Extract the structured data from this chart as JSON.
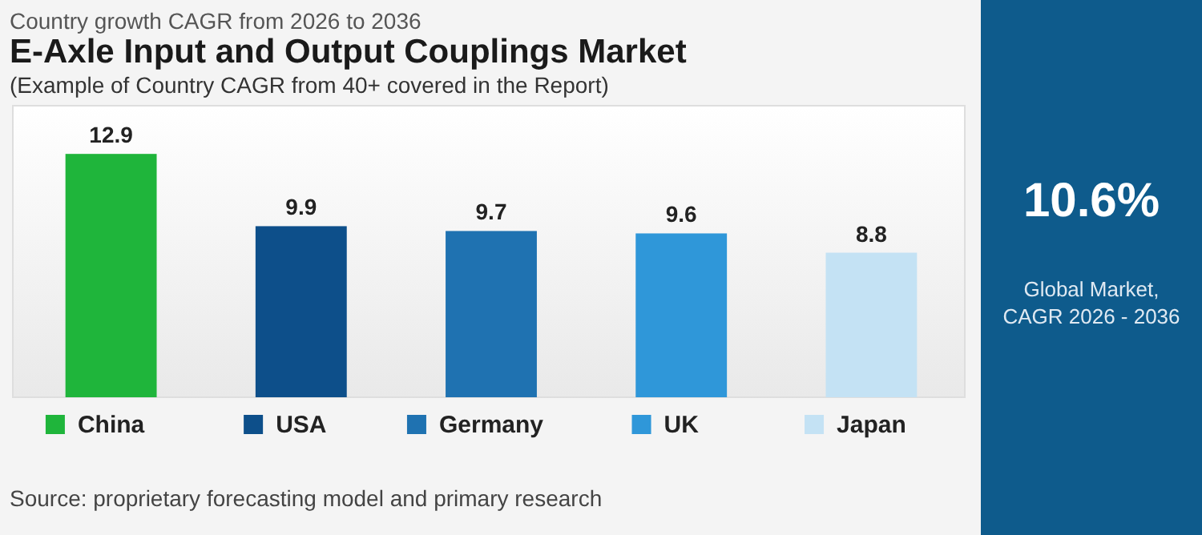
{
  "chart_data": [
    {
      "type": "bar",
      "title": "E-Axle Input and Output Couplings Market",
      "subtitle": "(Example of Country CAGR from 40+ covered in the Report)",
      "annotations": [
        "Country growth CAGR from 2026 to 2036",
        "Source: proprietary forecasting model and primary research"
      ],
      "categories": [
        "China",
        "USA",
        "Germany",
        "UK",
        "Japan"
      ],
      "values": [
        12.9,
        9.9,
        9.7,
        9.6,
        8.8
      ],
      "colors": [
        "#1fb53b",
        "#0d4f8a",
        "#1f72b1",
        "#2f97d9",
        "#c4e2f4"
      ],
      "ylim": [
        2.8,
        14.9
      ],
      "data_labels": true
    },
    {
      "type": "other",
      "title": "10.6%",
      "annotations": [
        "Global Market,",
        "CAGR 2026 - 2036"
      ]
    }
  ]
}
